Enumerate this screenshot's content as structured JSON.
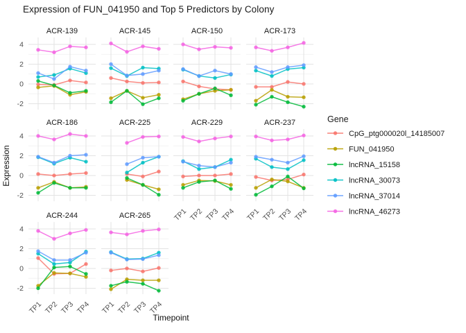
{
  "title": "Expression of FUN_041950 and Top 5 Predictors by Colony",
  "chart_data": {
    "type": "line",
    "faceted": true,
    "facet_by": "Colony",
    "title": "Expression of FUN_041950 and Top 5 Predictors by Colony",
    "x_label": "Timepoint",
    "y_label": "Expression",
    "legend_title": "Gene",
    "x_categories": [
      "TP1",
      "TP2",
      "TP3",
      "TP4"
    ],
    "y_tick_labels": [
      "4",
      "2",
      "0",
      "-2"
    ],
    "y_ticks": [
      4,
      2,
      0,
      -2
    ],
    "y_minor_ticks": [
      3,
      1,
      -1
    ],
    "ylim": [
      -2.6,
      4.7
    ],
    "grid": true,
    "legend_position": "right",
    "series": [
      {
        "name": "CpG_ptg000020l_14185007",
        "color": "#F8766D"
      },
      {
        "name": "FUN_041950",
        "color": "#B79F00"
      },
      {
        "name": "lncRNA_15158",
        "color": "#00BA38"
      },
      {
        "name": "lncRNA_30073",
        "color": "#00BFC4"
      },
      {
        "name": "lncRNA_37014",
        "color": "#619CFF"
      },
      {
        "name": "lncRNA_46273",
        "color": "#F564E3"
      }
    ],
    "facets": [
      {
        "name": "ACR-139",
        "values": [
          [
            -0.05,
            -0.1,
            0.35,
            0.15
          ],
          [
            -0.35,
            -0.2,
            -1.1,
            -0.8
          ],
          [
            0.3,
            -0.15,
            -0.9,
            -0.7
          ],
          [
            0.7,
            0.9,
            1.55,
            1.1
          ],
          [
            1.1,
            0.5,
            1.75,
            1.35
          ],
          [
            3.45,
            3.2,
            3.8,
            3.7
          ]
        ]
      },
      {
        "name": "ACR-145",
        "values": [
          [
            0.6,
            0.25,
            0.1,
            0.15
          ],
          [
            -1.45,
            -0.7,
            -1.4,
            -1.1
          ],
          [
            -1.85,
            -0.7,
            -2.05,
            -1.45
          ],
          [
            1.6,
            0.8,
            1.65,
            1.55
          ],
          [
            2.0,
            0.85,
            1.0,
            1.35
          ],
          [
            4.1,
            3.25,
            3.8,
            3.55
          ]
        ]
      },
      {
        "name": "ACR-150",
        "values": [
          [
            0.25,
            -0.25,
            -0.5,
            -0.6
          ],
          [
            -1.55,
            -1.0,
            -0.7,
            -0.6
          ],
          [
            -1.7,
            -1.0,
            -0.45,
            -1.15
          ],
          [
            1.45,
            0.8,
            0.6,
            0.95
          ],
          [
            1.5,
            0.8,
            1.35,
            1.0
          ],
          [
            4.0,
            3.5,
            3.75,
            3.65
          ]
        ]
      },
      {
        "name": "ACR-173",
        "values": [
          [
            -0.3,
            -0.3,
            0.2,
            0.0
          ],
          [
            -1.7,
            -0.6,
            -1.3,
            -1.35
          ],
          [
            -2.1,
            -1.3,
            -1.85,
            -2.3
          ],
          [
            1.35,
            0.8,
            1.5,
            1.65
          ],
          [
            1.7,
            1.2,
            1.7,
            1.9
          ],
          [
            3.7,
            3.35,
            3.7,
            4.15
          ]
        ]
      },
      {
        "name": "ACR-186",
        "values": [
          [
            0.15,
            0.0,
            0.15,
            0.25
          ],
          [
            -1.25,
            -0.65,
            -1.25,
            -1.15
          ],
          [
            -1.75,
            -0.75,
            -1.25,
            -1.25
          ],
          [
            1.85,
            1.2,
            1.8,
            1.4
          ],
          [
            1.9,
            1.3,
            2.0,
            2.1
          ],
          [
            4.0,
            3.65,
            4.2,
            4.0
          ]
        ]
      },
      {
        "name": "ACR-225",
        "values": [
          [
            null,
            0.15,
            -0.1,
            0.4
          ],
          [
            null,
            -0.45,
            -0.95,
            -1.4
          ],
          [
            null,
            -0.25,
            -0.95,
            -1.95
          ],
          [
            null,
            0.3,
            1.3,
            1.9
          ],
          [
            null,
            1.15,
            1.8,
            1.9
          ],
          [
            null,
            3.3,
            3.9,
            3.95
          ]
        ]
      },
      {
        "name": "ACR-229",
        "values": [
          [
            -0.1,
            0.0,
            0.0,
            0.15
          ],
          [
            -0.95,
            -0.5,
            -0.55,
            -0.95
          ],
          [
            -1.25,
            -0.65,
            -0.5,
            -1.35
          ],
          [
            1.45,
            0.65,
            0.85,
            1.6
          ],
          [
            1.4,
            1.0,
            0.85,
            1.3
          ],
          [
            3.9,
            3.45,
            3.75,
            3.95
          ]
        ]
      },
      {
        "name": "ACR-237",
        "values": [
          [
            -0.15,
            -0.5,
            -0.4,
            0.1
          ],
          [
            -1.25,
            -0.4,
            -0.6,
            -1.25
          ],
          [
            -1.95,
            -1.1,
            -0.1,
            -1.3
          ],
          [
            1.7,
            0.85,
            0.65,
            1.55
          ],
          [
            1.9,
            1.6,
            1.3,
            1.95
          ],
          [
            3.95,
            3.55,
            3.65,
            4.05
          ]
        ]
      },
      {
        "name": "ACR-244",
        "values": [
          [
            1.05,
            -0.55,
            -0.5,
            0.45
          ],
          [
            -1.75,
            -0.45,
            -0.5,
            -0.85
          ],
          [
            -2.0,
            0.1,
            0.2,
            -0.55
          ],
          [
            1.5,
            0.45,
            0.6,
            1.7
          ],
          [
            1.75,
            0.85,
            0.85,
            1.6
          ],
          [
            3.8,
            3.0,
            3.55,
            3.9
          ]
        ]
      },
      {
        "name": "ACR-265",
        "values": [
          [
            -0.2,
            0.0,
            -0.3,
            0.05
          ],
          [
            -2.1,
            -1.1,
            -1.2,
            -1.2
          ],
          [
            -1.75,
            -1.35,
            -1.55,
            -2.25
          ],
          [
            1.65,
            0.95,
            1.0,
            1.6
          ],
          [
            1.6,
            0.9,
            0.95,
            1.35
          ],
          [
            3.65,
            3.45,
            3.8,
            3.95
          ]
        ]
      }
    ],
    "colors": {
      "background": "#FFFFFF",
      "grid_major": "#E3E3E3",
      "grid_minor": "#F0F0F0",
      "tick_text": "#4D4D4D",
      "strip_text": "#1A1A1A",
      "title_text": "#1A1A1A"
    }
  }
}
